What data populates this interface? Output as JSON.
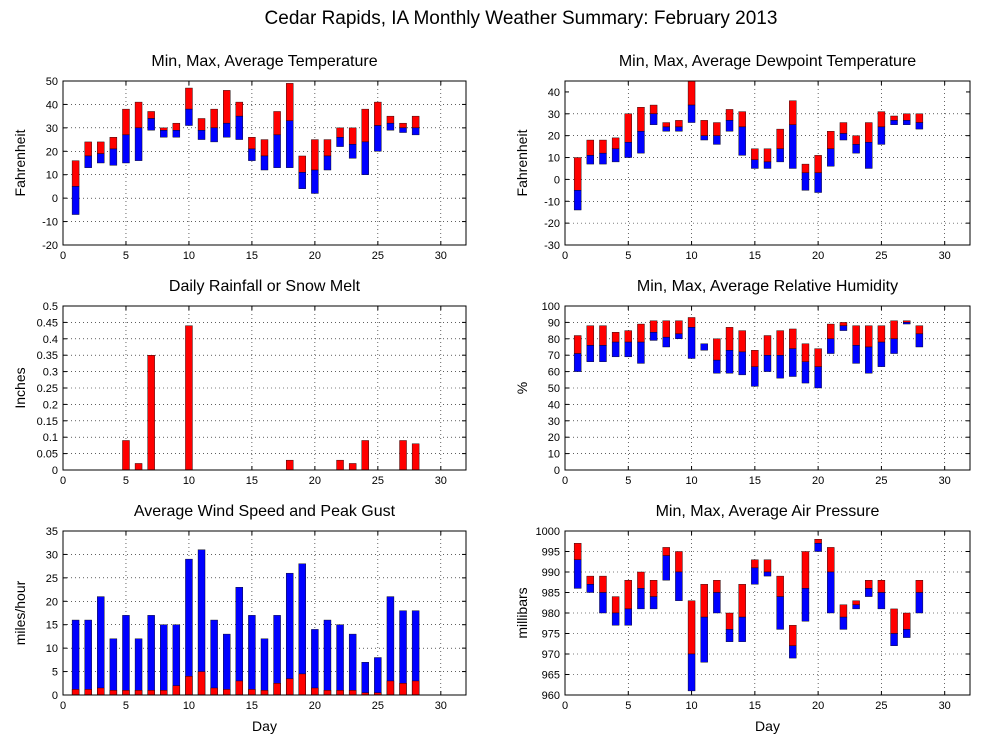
{
  "page": {
    "title": "Cedar Rapids, IA Monthly Weather Summary: February 2013"
  },
  "colors": {
    "primary": "#ff0000",
    "secondary": "#0000ff"
  },
  "chart_data": [
    {
      "id": "temp",
      "type": "bar",
      "style": "min-max-average",
      "title": "Min, Max, Average Temperature",
      "ylabel": "Fahrenheit",
      "xlabel": "",
      "xlim": [
        0,
        32
      ],
      "ylim": [
        -20,
        50
      ],
      "xticks": [
        0,
        5,
        10,
        15,
        20,
        25,
        30
      ],
      "yticks": [
        -20,
        -10,
        0,
        10,
        20,
        30,
        40,
        50
      ],
      "x": [
        1,
        2,
        3,
        4,
        5,
        6,
        7,
        8,
        9,
        10,
        11,
        12,
        13,
        14,
        15,
        16,
        17,
        18,
        19,
        20,
        21,
        22,
        23,
        24,
        25,
        26,
        27,
        28
      ],
      "min": [
        -7,
        13,
        15,
        14,
        15,
        16,
        29,
        26,
        26,
        31,
        25,
        24,
        26,
        25,
        16,
        12,
        13,
        13,
        4,
        2,
        12,
        22,
        17,
        10,
        20,
        29,
        28,
        27
      ],
      "avg": [
        5,
        18,
        19,
        21,
        27,
        30,
        34,
        29,
        29,
        38,
        29,
        30,
        32,
        35,
        21,
        18,
        27,
        33,
        11,
        12,
        18,
        26,
        23,
        24,
        31,
        32,
        30,
        30
      ],
      "max": [
        16,
        24,
        24,
        26,
        38,
        41,
        37,
        30,
        32,
        47,
        34,
        38,
        46,
        41,
        26,
        25,
        37,
        49,
        18,
        25,
        25,
        30,
        30,
        38,
        41,
        35,
        32,
        35
      ]
    },
    {
      "id": "dewpoint",
      "type": "bar",
      "style": "min-max-average",
      "title": "Min, Max, Average Dewpoint Temperature",
      "ylabel": "Fahrenheit",
      "xlabel": "",
      "xlim": [
        0,
        32
      ],
      "ylim": [
        -30,
        45
      ],
      "xticks": [
        0,
        5,
        10,
        15,
        20,
        25,
        30
      ],
      "yticks": [
        -30,
        -20,
        -10,
        0,
        10,
        20,
        30,
        40
      ],
      "x": [
        1,
        2,
        3,
        4,
        5,
        6,
        7,
        8,
        9,
        10,
        11,
        12,
        13,
        14,
        15,
        16,
        17,
        18,
        19,
        20,
        21,
        22,
        23,
        24,
        25,
        26,
        27,
        28
      ],
      "min": [
        -14,
        7,
        7,
        8,
        10,
        12,
        25,
        22,
        22,
        26,
        18,
        16,
        22,
        11,
        5,
        5,
        8,
        5,
        -5,
        -6,
        6,
        18,
        12,
        5,
        16,
        25,
        25,
        23
      ],
      "avg": [
        -5,
        11,
        12,
        14,
        17,
        22,
        30,
        24,
        24,
        34,
        20,
        20,
        27,
        24,
        9,
        8,
        14,
        25,
        3,
        3,
        14,
        21,
        16,
        17,
        24,
        27,
        27,
        26
      ],
      "max": [
        10,
        18,
        18,
        19,
        30,
        33,
        34,
        26,
        27,
        45,
        27,
        26,
        32,
        31,
        14,
        14,
        23,
        36,
        7,
        11,
        22,
        26,
        20,
        26,
        31,
        29,
        30,
        30
      ]
    },
    {
      "id": "rain",
      "type": "bar",
      "style": "single",
      "title": "Daily Rainfall or Snow Melt",
      "ylabel": "Inches",
      "xlabel": "",
      "xlim": [
        0,
        32
      ],
      "ylim": [
        0,
        0.5
      ],
      "xticks": [
        0,
        5,
        10,
        15,
        20,
        25,
        30
      ],
      "yticks": [
        0,
        0.05,
        0.1,
        0.15,
        0.2,
        0.25,
        0.3,
        0.35,
        0.4,
        0.45,
        0.5
      ],
      "x": [
        5,
        6,
        7,
        10,
        18,
        22,
        23,
        24,
        27,
        28
      ],
      "values": [
        0.09,
        0.02,
        0.35,
        0.44,
        0.03,
        0.03,
        0.02,
        0.09,
        0.09,
        0.08
      ]
    },
    {
      "id": "humidity",
      "type": "bar",
      "style": "min-max-average",
      "title": "Min, Max, Average Relative Humidity",
      "ylabel": "%",
      "xlabel": "",
      "xlim": [
        0,
        32
      ],
      "ylim": [
        0,
        100
      ],
      "xticks": [
        0,
        5,
        10,
        15,
        20,
        25,
        30
      ],
      "yticks": [
        0,
        10,
        20,
        30,
        40,
        50,
        60,
        70,
        80,
        90,
        100
      ],
      "x": [
        1,
        2,
        3,
        4,
        5,
        6,
        7,
        8,
        9,
        10,
        11,
        12,
        13,
        14,
        15,
        16,
        17,
        18,
        19,
        20,
        21,
        22,
        23,
        24,
        25,
        26,
        27,
        28
      ],
      "min": [
        60,
        66,
        66,
        69,
        69,
        65,
        79,
        75,
        80,
        68,
        73,
        59,
        59,
        58,
        51,
        60,
        56,
        57,
        53,
        50,
        71,
        85,
        65,
        59,
        63,
        71,
        89,
        75
      ],
      "avg": [
        71,
        76,
        76,
        78,
        78,
        78,
        84,
        81,
        83,
        87,
        77,
        67,
        73,
        72,
        63,
        70,
        70,
        74,
        66,
        63,
        80,
        88,
        76,
        75,
        78,
        80,
        90,
        83
      ],
      "max": [
        82,
        88,
        88,
        84,
        85,
        89,
        91,
        91,
        91,
        93,
        77,
        80,
        87,
        85,
        73,
        82,
        85,
        86,
        77,
        74,
        89,
        90,
        88,
        88,
        88,
        91,
        91,
        88
      ]
    },
    {
      "id": "wind",
      "type": "bar",
      "style": "gust-average",
      "title": "Average Wind Speed and Peak Gust",
      "ylabel": "miles/hour",
      "xlabel": "Day",
      "xlim": [
        0,
        32
      ],
      "ylim": [
        0,
        35
      ],
      "xticks": [
        0,
        5,
        10,
        15,
        20,
        25,
        30
      ],
      "yticks": [
        0,
        5,
        10,
        15,
        20,
        25,
        30,
        35
      ],
      "x": [
        1,
        2,
        3,
        4,
        5,
        6,
        7,
        8,
        9,
        10,
        11,
        12,
        13,
        14,
        15,
        16,
        17,
        18,
        19,
        20,
        21,
        22,
        23,
        24,
        25,
        26,
        27,
        28
      ],
      "gust": [
        16,
        16,
        21,
        12,
        17,
        12,
        17,
        15,
        15,
        29,
        31,
        16,
        13,
        23,
        17,
        12,
        17,
        26,
        28,
        14,
        16,
        15,
        13,
        7,
        8,
        21,
        18,
        18
      ],
      "avg_speed": [
        1.2,
        1.2,
        1.5,
        1,
        1,
        1,
        1,
        1,
        2,
        4,
        5,
        1.5,
        1.2,
        3,
        1.2,
        1,
        2.5,
        3.5,
        4.5,
        1.5,
        1,
        1,
        1,
        0.5,
        0.5,
        3,
        2.5,
        3
      ]
    },
    {
      "id": "pressure",
      "type": "bar",
      "style": "min-max-average",
      "title": "Min, Max, Average Air Pressure",
      "ylabel": "millibars",
      "xlabel": "Day",
      "xlim": [
        0,
        32
      ],
      "ylim": [
        960,
        1000
      ],
      "xticks": [
        0,
        5,
        10,
        15,
        20,
        25,
        30
      ],
      "yticks": [
        960,
        965,
        970,
        975,
        980,
        985,
        990,
        995,
        1000
      ],
      "x": [
        1,
        2,
        3,
        4,
        5,
        6,
        7,
        8,
        9,
        10,
        11,
        12,
        13,
        14,
        15,
        16,
        17,
        18,
        19,
        20,
        21,
        22,
        23,
        24,
        25,
        26,
        27,
        28
      ],
      "min": [
        986,
        985,
        980,
        977,
        977,
        981,
        981,
        988,
        983,
        961,
        968,
        980,
        973,
        973,
        987,
        989,
        976,
        969,
        978,
        995,
        980,
        976,
        981,
        984,
        981,
        972,
        974,
        980
      ],
      "avg": [
        993,
        987,
        985,
        980,
        981,
        986,
        984,
        994,
        990,
        970,
        979,
        985,
        976,
        979,
        991,
        990,
        984,
        972,
        986,
        997,
        990,
        979,
        982,
        986,
        985,
        975,
        976,
        985
      ],
      "max": [
        997,
        989,
        989,
        984,
        988,
        990,
        988,
        996,
        995,
        983,
        987,
        988,
        980,
        987,
        993,
        993,
        989,
        977,
        995,
        998,
        996,
        982,
        983,
        988,
        988,
        981,
        980,
        988
      ]
    }
  ]
}
